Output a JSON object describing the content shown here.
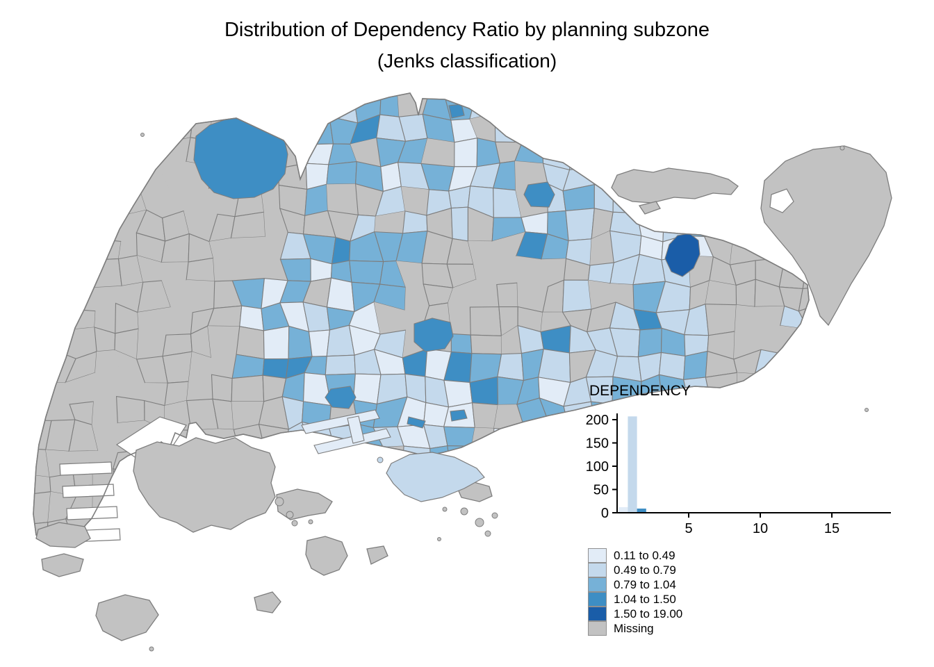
{
  "title": {
    "line1": "Distribution of Dependency Ratio by planning subzone",
    "line2": "(Jenks classification)"
  },
  "palette": {
    "c1": "#E2ECF7",
    "c2": "#C4D9EC",
    "c3": "#76B1D7",
    "c4": "#3E8EC4",
    "c5": "#1A5DA8",
    "missing": "#C2C2C2",
    "border": "#7D7D7D",
    "sea": "#FFFFFF",
    "text": "#000000"
  },
  "legend": {
    "items": [
      {
        "label": "0.11 to 0.49",
        "class_key": "c1"
      },
      {
        "label": "0.49 to 0.79",
        "class_key": "c2"
      },
      {
        "label": "0.79 to 1.04",
        "class_key": "c3"
      },
      {
        "label": "1.04 to 1.50",
        "class_key": "c4"
      },
      {
        "label": "1.50 to 19.00",
        "class_key": "c5"
      },
      {
        "label": "Missing",
        "class_key": "missing"
      }
    ]
  },
  "chart_data": {
    "type": "bar",
    "title": "DEPENDENCY",
    "xlabel": "",
    "ylabel": "",
    "x_ticks": [
      5,
      10,
      15
    ],
    "y_ticks": [
      0,
      50,
      100,
      150,
      200
    ],
    "xlim": [
      0,
      19.1
    ],
    "ylim": [
      0,
      215
    ],
    "bars": [
      {
        "x_start": 0.11,
        "x_end": 0.75,
        "count": 12,
        "class_key": "c1"
      },
      {
        "x_start": 0.75,
        "x_end": 1.39,
        "count": 207,
        "class_key": "c2"
      },
      {
        "x_start": 1.39,
        "x_end": 2.03,
        "count": 9,
        "class_key": "c4"
      }
    ]
  }
}
